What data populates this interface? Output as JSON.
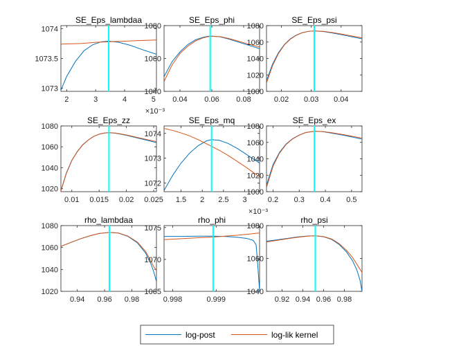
{
  "legend": {
    "items": [
      {
        "label": "log-post",
        "color": "#0072BD"
      },
      {
        "label": "log-lik kernel",
        "color": "#D95319"
      }
    ]
  },
  "mode_line_color": "#00FFFF",
  "chart_data": [
    {
      "type": "line",
      "title": "SE_Eps_lambdaa",
      "xlim": [
        1.8,
        5.1
      ],
      "ylim": [
        1072.95,
        1074.05
      ],
      "xticks": [
        2,
        3,
        4,
        5
      ],
      "xtick_labels": [
        "2",
        "3",
        "4",
        "5"
      ],
      "x_exponent": "×10⁻³",
      "yticks": [
        1073,
        1073.5,
        1074
      ],
      "ytick_labels": [
        "1073",
        "1073.5",
        "1074"
      ],
      "mode_x": 3.45,
      "series": [
        {
          "name": "log-post",
          "x": [
            1.8,
            2.0,
            2.3,
            2.6,
            2.9,
            3.2,
            3.45,
            3.8,
            4.2,
            4.6,
            5.1
          ],
          "y": [
            1072.97,
            1073.2,
            1073.45,
            1073.63,
            1073.73,
            1073.78,
            1073.79,
            1073.77,
            1073.72,
            1073.65,
            1073.57
          ]
        },
        {
          "name": "log-lik kernel",
          "x": [
            1.8,
            2.5,
            3.0,
            3.45,
            4.0,
            4.5,
            5.1
          ],
          "y": [
            1073.74,
            1073.75,
            1073.77,
            1073.78,
            1073.79,
            1073.8,
            1073.81
          ]
        }
      ]
    },
    {
      "type": "line",
      "title": "SE_Eps_phi",
      "xlim": [
        0.03,
        0.09
      ],
      "ylim": [
        1040,
        1080
      ],
      "xticks": [
        0.04,
        0.06,
        0.08
      ],
      "xtick_labels": [
        "0.04",
        "0.06",
        "0.08"
      ],
      "yticks": [
        1040,
        1060,
        1080
      ],
      "ytick_labels": [
        "1040",
        "1060",
        "1080"
      ],
      "mode_x": 0.059,
      "series": [
        {
          "name": "log-post",
          "x": [
            0.03,
            0.035,
            0.04,
            0.045,
            0.05,
            0.055,
            0.059,
            0.065,
            0.07,
            0.075,
            0.08,
            0.085,
            0.09
          ],
          "y": [
            1049,
            1058,
            1064,
            1068.5,
            1071.5,
            1073,
            1073.7,
            1073.2,
            1072,
            1070.5,
            1069,
            1067.5,
            1066
          ]
        },
        {
          "name": "log-lik kernel",
          "x": [
            0.03,
            0.035,
            0.04,
            0.045,
            0.05,
            0.055,
            0.059,
            0.065,
            0.07,
            0.075,
            0.08,
            0.085,
            0.09
          ],
          "y": [
            1046,
            1056,
            1063,
            1067.5,
            1070.8,
            1072.7,
            1073.5,
            1073.3,
            1072.3,
            1071,
            1069.6,
            1068.2,
            1067
          ]
        }
      ]
    },
    {
      "type": "line",
      "title": "SE_Eps_psi",
      "xlim": [
        0.015,
        0.047
      ],
      "ylim": [
        1000,
        1080
      ],
      "xticks": [
        0.02,
        0.03,
        0.04
      ],
      "xtick_labels": [
        "0.02",
        "0.03",
        "0.04"
      ],
      "yticks": [
        1000,
        1020,
        1040,
        1060,
        1080
      ],
      "ytick_labels": [
        "1000",
        "1020",
        "1040",
        "1060",
        "1080"
      ],
      "mode_x": 0.031,
      "series": [
        {
          "name": "log-post",
          "x": [
            0.015,
            0.017,
            0.019,
            0.021,
            0.023,
            0.025,
            0.027,
            0.029,
            0.031,
            0.034,
            0.037,
            0.04,
            0.043,
            0.047
          ],
          "y": [
            1013,
            1033,
            1047,
            1057,
            1064,
            1068.5,
            1071.5,
            1073,
            1073.5,
            1072.8,
            1071,
            1069,
            1066.8,
            1064
          ]
        },
        {
          "name": "log-lik kernel",
          "x": [
            0.015,
            0.017,
            0.019,
            0.021,
            0.023,
            0.025,
            0.027,
            0.029,
            0.031,
            0.034,
            0.037,
            0.04,
            0.043,
            0.047
          ],
          "y": [
            1010,
            1031,
            1046,
            1056.5,
            1063.5,
            1068.2,
            1071.3,
            1073,
            1073.6,
            1073.1,
            1071.6,
            1069.8,
            1067.8,
            1065
          ]
        }
      ]
    },
    {
      "type": "line",
      "title": "SE_Eps_zz",
      "xlim": [
        0.008,
        0.0255
      ],
      "ylim": [
        1017,
        1080
      ],
      "xticks": [
        0.01,
        0.015,
        0.02,
        0.025
      ],
      "xtick_labels": [
        "0.01",
        "0.015",
        "0.02",
        "0.025"
      ],
      "yticks": [
        1020,
        1040,
        1060,
        1080
      ],
      "ytick_labels": [
        "1020",
        "1040",
        "1060",
        "1080"
      ],
      "mode_x": 0.0168,
      "series": [
        {
          "name": "log-post",
          "x": [
            0.008,
            0.009,
            0.01,
            0.011,
            0.012,
            0.013,
            0.014,
            0.015,
            0.016,
            0.0168,
            0.018,
            0.02,
            0.022,
            0.024,
            0.0255
          ],
          "y": [
            1018,
            1035,
            1047,
            1055.5,
            1062,
            1066.5,
            1070,
            1072,
            1073.2,
            1073.5,
            1073,
            1071,
            1068.5,
            1066,
            1064
          ]
        },
        {
          "name": "log-lik kernel",
          "x": [
            0.008,
            0.009,
            0.01,
            0.011,
            0.012,
            0.013,
            0.014,
            0.015,
            0.016,
            0.0168,
            0.018,
            0.02,
            0.022,
            0.024,
            0.0255
          ],
          "y": [
            1017.5,
            1034.5,
            1046.8,
            1055.3,
            1061.8,
            1066.4,
            1070,
            1072.1,
            1073.3,
            1073.6,
            1073.2,
            1071.4,
            1069,
            1066.7,
            1065
          ]
        }
      ]
    },
    {
      "type": "line",
      "title": "SE_Eps_mq",
      "xlim": [
        1.1,
        3.35
      ],
      "ylim": [
        1071.65,
        1074.3
      ],
      "xticks": [
        1.5,
        2,
        2.5,
        3
      ],
      "xtick_labels": [
        "1.5",
        "2",
        "2.5",
        "3"
      ],
      "x_exponent": "×10⁻³",
      "yticks": [
        1072,
        1073,
        1074
      ],
      "ytick_labels": [
        "1072",
        "1073",
        "1074"
      ],
      "mode_x": 2.22,
      "series": [
        {
          "name": "log-post",
          "x": [
            1.1,
            1.3,
            1.5,
            1.7,
            1.9,
            2.1,
            2.22,
            2.4,
            2.6,
            2.8,
            3.0,
            3.2,
            3.35
          ],
          "y": [
            1071.7,
            1072.3,
            1072.8,
            1073.2,
            1073.5,
            1073.7,
            1073.75,
            1073.72,
            1073.6,
            1073.42,
            1073.2,
            1072.97,
            1072.8
          ]
        },
        {
          "name": "log-lik kernel",
          "x": [
            1.1,
            1.3,
            1.5,
            1.7,
            1.9,
            2.1,
            2.22,
            2.4,
            2.6,
            2.8,
            3.0,
            3.2,
            3.35
          ],
          "y": [
            1074.2,
            1074.12,
            1074.02,
            1073.9,
            1073.75,
            1073.58,
            1073.48,
            1073.32,
            1073.12,
            1072.9,
            1072.67,
            1072.43,
            1072.25
          ]
        }
      ]
    },
    {
      "type": "line",
      "title": "SE_Eps_ex",
      "xlim": [
        0.175,
        0.54
      ],
      "ylim": [
        1000,
        1080
      ],
      "xticks": [
        0.2,
        0.3,
        0.4,
        0.5
      ],
      "xtick_labels": [
        "0.2",
        "0.3",
        "0.4",
        "0.5"
      ],
      "yticks": [
        1000,
        1020,
        1040,
        1060,
        1080
      ],
      "ytick_labels": [
        "1000",
        "1020",
        "1040",
        "1060",
        "1080"
      ],
      "mode_x": 0.358,
      "series": [
        {
          "name": "log-post",
          "x": [
            0.175,
            0.2,
            0.225,
            0.25,
            0.275,
            0.3,
            0.325,
            0.358,
            0.39,
            0.42,
            0.45,
            0.48,
            0.51,
            0.54
          ],
          "y": [
            1008,
            1033,
            1048,
            1058,
            1064.5,
            1069,
            1072,
            1073.5,
            1073,
            1071.5,
            1069.8,
            1068,
            1066,
            1064
          ]
        },
        {
          "name": "log-lik kernel",
          "x": [
            0.175,
            0.2,
            0.225,
            0.25,
            0.275,
            0.3,
            0.325,
            0.358,
            0.39,
            0.42,
            0.45,
            0.48,
            0.51,
            0.54
          ],
          "y": [
            1005,
            1031,
            1047,
            1057.5,
            1064.2,
            1068.8,
            1072,
            1073.6,
            1073.2,
            1072,
            1070.4,
            1068.8,
            1067,
            1065.2
          ]
        }
      ]
    },
    {
      "type": "line",
      "title": "rho_lambdaa",
      "xlim": [
        0.928,
        0.998
      ],
      "ylim": [
        1020,
        1080
      ],
      "xticks": [
        0.94,
        0.96,
        0.98
      ],
      "xtick_labels": [
        "0.94",
        "0.96",
        "0.98"
      ],
      "yticks": [
        1020,
        1040,
        1060,
        1080
      ],
      "ytick_labels": [
        "1020",
        "1040",
        "1060",
        "1080"
      ],
      "mode_x": 0.9635,
      "series": [
        {
          "name": "log-post",
          "x": [
            0.928,
            0.935,
            0.942,
            0.949,
            0.956,
            0.9635,
            0.97,
            0.977,
            0.984,
            0.99,
            0.994,
            0.996,
            0.998
          ],
          "y": [
            1061,
            1064.5,
            1067.8,
            1070.6,
            1072.8,
            1073.8,
            1073.2,
            1070.2,
            1064.3,
            1055,
            1045,
            1038,
            1029
          ]
        },
        {
          "name": "log-lik kernel",
          "x": [
            0.928,
            0.935,
            0.942,
            0.949,
            0.956,
            0.9635,
            0.97,
            0.977,
            0.984,
            0.99,
            0.994,
            0.996,
            0.998
          ],
          "y": [
            1061,
            1064.5,
            1067.8,
            1070.6,
            1072.8,
            1073.8,
            1073.3,
            1070.5,
            1065,
            1056.5,
            1047.5,
            1042.5,
            1039
          ]
        }
      ]
    },
    {
      "type": "line",
      "title": "rho_phi",
      "xlim": [
        0.9978,
        1.0
      ],
      "ylim": [
        1065,
        1075.3
      ],
      "xticks": [
        0.998,
        0.999
      ],
      "xtick_labels": [
        "0.998",
        "0.999"
      ],
      "yticks": [
        1065,
        1070,
        1075
      ],
      "ytick_labels": [
        "1065",
        "1070",
        "1075"
      ],
      "mode_x": 0.99893,
      "series": [
        {
          "name": "log-post",
          "x": [
            0.9978,
            0.9982,
            0.9986,
            0.99893,
            0.9992,
            0.9995,
            0.9997,
            0.99985,
            0.99992,
            0.99996,
            1.0
          ],
          "y": [
            1073.6,
            1073.6,
            1073.65,
            1073.65,
            1073.6,
            1073.45,
            1073.3,
            1073.0,
            1072.3,
            1069,
            1065
          ]
        },
        {
          "name": "log-lik kernel",
          "x": [
            0.9978,
            0.9982,
            0.9986,
            0.99893,
            0.9992,
            0.9995,
            0.9998,
            1.0
          ],
          "y": [
            1073.1,
            1073.25,
            1073.4,
            1073.5,
            1073.65,
            1073.8,
            1074.0,
            1074.15
          ]
        }
      ]
    },
    {
      "type": "line",
      "title": "rho_psi",
      "xlim": [
        0.905,
        0.997
      ],
      "ylim": [
        1040,
        1080
      ],
      "xticks": [
        0.92,
        0.94,
        0.96,
        0.98
      ],
      "xtick_labels": [
        "0.92",
        "0.94",
        "0.96",
        "0.98"
      ],
      "yticks": [
        1040,
        1060,
        1080
      ],
      "ytick_labels": [
        "1040",
        "1060",
        "1080"
      ],
      "mode_x": 0.952,
      "series": [
        {
          "name": "log-post",
          "x": [
            0.905,
            0.915,
            0.925,
            0.935,
            0.945,
            0.952,
            0.96,
            0.968,
            0.975,
            0.982,
            0.988,
            0.992,
            0.995,
            0.997
          ],
          "y": [
            1070.5,
            1071.3,
            1072.2,
            1073.1,
            1073.7,
            1073.8,
            1073.2,
            1071.5,
            1068.5,
            1064,
            1058.5,
            1053,
            1047,
            1040
          ]
        },
        {
          "name": "log-lik kernel",
          "x": [
            0.905,
            0.915,
            0.925,
            0.935,
            0.945,
            0.952,
            0.96,
            0.968,
            0.975,
            0.982,
            0.988,
            0.992,
            0.995,
            0.997
          ],
          "y": [
            1070,
            1071,
            1072,
            1072.9,
            1073.6,
            1073.8,
            1073.3,
            1071.8,
            1069,
            1065,
            1060.5,
            1056.5,
            1053.5,
            1051.5
          ]
        }
      ]
    }
  ]
}
